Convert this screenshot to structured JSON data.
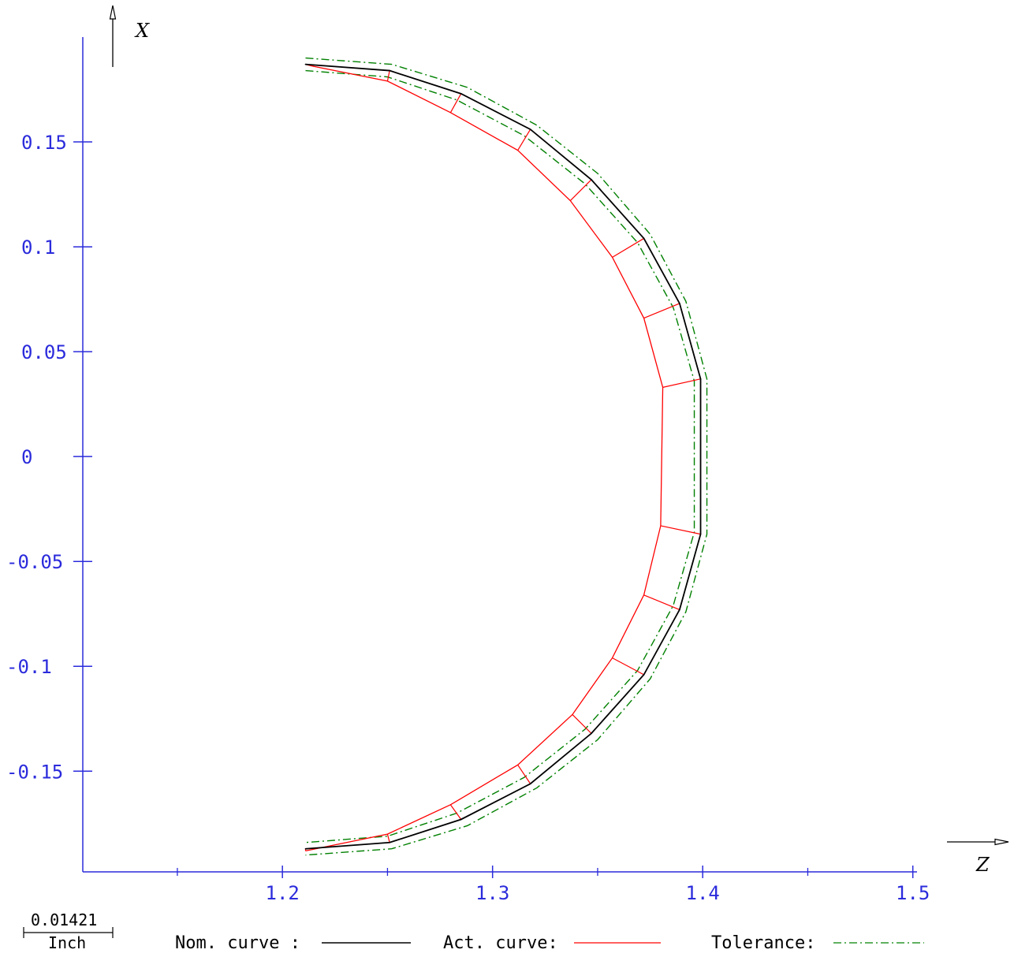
{
  "chart_data": {
    "type": "line",
    "xlabel": "Z",
    "ylabel": "X",
    "xlim": [
      1.105,
      1.5
    ],
    "ylim": [
      -0.198,
      0.2
    ],
    "x_ticks_major": [
      {
        "value": 1.2,
        "label": "1.2"
      },
      {
        "value": 1.3,
        "label": "1.3"
      },
      {
        "value": 1.4,
        "label": "1.4"
      },
      {
        "value": 1.5,
        "label": "1.5"
      }
    ],
    "x_ticks_minor": [
      1.15,
      1.25,
      1.35,
      1.45
    ],
    "y_ticks": [
      {
        "value": 0.15,
        "label": "0.15"
      },
      {
        "value": 0.1,
        "label": "0.1"
      },
      {
        "value": 0.05,
        "label": "0.05"
      },
      {
        "value": 0,
        "label": "0"
      },
      {
        "value": -0.05,
        "label": "-0.05"
      },
      {
        "value": -0.1,
        "label": "-0.1"
      },
      {
        "value": -0.15,
        "label": "-0.15"
      }
    ],
    "colors": {
      "nominal": "#000000",
      "actual": "#ff0000",
      "tolerance": "#008000",
      "axis": "#2b2bdc"
    },
    "series": [
      {
        "name": "Nom. curve :",
        "style": "solid",
        "points": [
          [
            1.211,
            0.187
          ],
          [
            1.251,
            0.184
          ],
          [
            1.285,
            0.173
          ],
          [
            1.318,
            0.156
          ],
          [
            1.347,
            0.132
          ],
          [
            1.372,
            0.104
          ],
          [
            1.389,
            0.073
          ],
          [
            1.399,
            0.037
          ],
          [
            1.399,
            -0.037
          ],
          [
            1.389,
            -0.073
          ],
          [
            1.372,
            -0.104
          ],
          [
            1.347,
            -0.132
          ],
          [
            1.318,
            -0.156
          ],
          [
            1.285,
            -0.173
          ],
          [
            1.251,
            -0.184
          ],
          [
            1.211,
            -0.187
          ]
        ]
      },
      {
        "name": "Act. curve:",
        "style": "solid",
        "points": [
          [
            1.211,
            0.187
          ],
          [
            1.215,
            0.186
          ],
          [
            1.25,
            0.179
          ],
          [
            1.28,
            0.164
          ],
          [
            1.312,
            0.146
          ],
          [
            1.337,
            0.122
          ],
          [
            1.357,
            0.095
          ],
          [
            1.372,
            0.066
          ],
          [
            1.381,
            0.033
          ],
          [
            1.38,
            -0.033
          ],
          [
            1.372,
            -0.066
          ],
          [
            1.357,
            -0.096
          ],
          [
            1.338,
            -0.123
          ],
          [
            1.312,
            -0.147
          ],
          [
            1.28,
            -0.166
          ],
          [
            1.25,
            -0.18
          ],
          [
            1.211,
            -0.188
          ]
        ]
      },
      {
        "name": "Tolerance:",
        "style": "dashdot",
        "role": "outer",
        "points": [
          [
            1.211,
            0.19
          ],
          [
            1.252,
            0.187
          ],
          [
            1.288,
            0.176
          ],
          [
            1.321,
            0.158
          ],
          [
            1.35,
            0.135
          ],
          [
            1.375,
            0.106
          ],
          [
            1.392,
            0.074
          ],
          [
            1.402,
            0.037
          ],
          [
            1.402,
            -0.037
          ],
          [
            1.392,
            -0.074
          ],
          [
            1.375,
            -0.106
          ],
          [
            1.35,
            -0.135
          ],
          [
            1.321,
            -0.158
          ],
          [
            1.288,
            -0.176
          ],
          [
            1.252,
            -0.187
          ],
          [
            1.211,
            -0.19
          ]
        ]
      },
      {
        "name": "Tolerance:",
        "style": "dashdot",
        "role": "inner",
        "points": [
          [
            1.211,
            0.184
          ],
          [
            1.25,
            0.181
          ],
          [
            1.283,
            0.17
          ],
          [
            1.315,
            0.153
          ],
          [
            1.344,
            0.13
          ],
          [
            1.369,
            0.102
          ],
          [
            1.386,
            0.071
          ],
          [
            1.396,
            0.036
          ],
          [
            1.396,
            -0.036
          ],
          [
            1.386,
            -0.071
          ],
          [
            1.369,
            -0.102
          ],
          [
            1.344,
            -0.13
          ],
          [
            1.315,
            -0.153
          ],
          [
            1.283,
            -0.17
          ],
          [
            1.25,
            -0.181
          ],
          [
            1.211,
            -0.184
          ]
        ]
      }
    ],
    "deviation_segments": [
      [
        [
          1.211,
          0.187
        ],
        [
          1.215,
          0.186
        ]
      ],
      [
        [
          1.251,
          0.184
        ],
        [
          1.25,
          0.179
        ]
      ],
      [
        [
          1.285,
          0.173
        ],
        [
          1.28,
          0.164
        ]
      ],
      [
        [
          1.318,
          0.156
        ],
        [
          1.312,
          0.146
        ]
      ],
      [
        [
          1.347,
          0.132
        ],
        [
          1.337,
          0.122
        ]
      ],
      [
        [
          1.372,
          0.104
        ],
        [
          1.357,
          0.095
        ]
      ],
      [
        [
          1.389,
          0.073
        ],
        [
          1.372,
          0.066
        ]
      ],
      [
        [
          1.399,
          0.037
        ],
        [
          1.381,
          0.033
        ]
      ],
      [
        [
          1.399,
          -0.037
        ],
        [
          1.38,
          -0.033
        ]
      ],
      [
        [
          1.389,
          -0.073
        ],
        [
          1.372,
          -0.066
        ]
      ],
      [
        [
          1.372,
          -0.104
        ],
        [
          1.357,
          -0.096
        ]
      ],
      [
        [
          1.347,
          -0.132
        ],
        [
          1.338,
          -0.123
        ]
      ],
      [
        [
          1.318,
          -0.156
        ],
        [
          1.312,
          -0.147
        ]
      ],
      [
        [
          1.285,
          -0.173
        ],
        [
          1.28,
          -0.166
        ]
      ],
      [
        [
          1.251,
          -0.184
        ],
        [
          1.25,
          -0.18
        ]
      ],
      [
        [
          1.211,
          -0.187
        ],
        [
          1.211,
          -0.188
        ]
      ]
    ],
    "scale": {
      "value": "0.01421",
      "unit": "Inch"
    },
    "legend_placement": "bottom"
  }
}
